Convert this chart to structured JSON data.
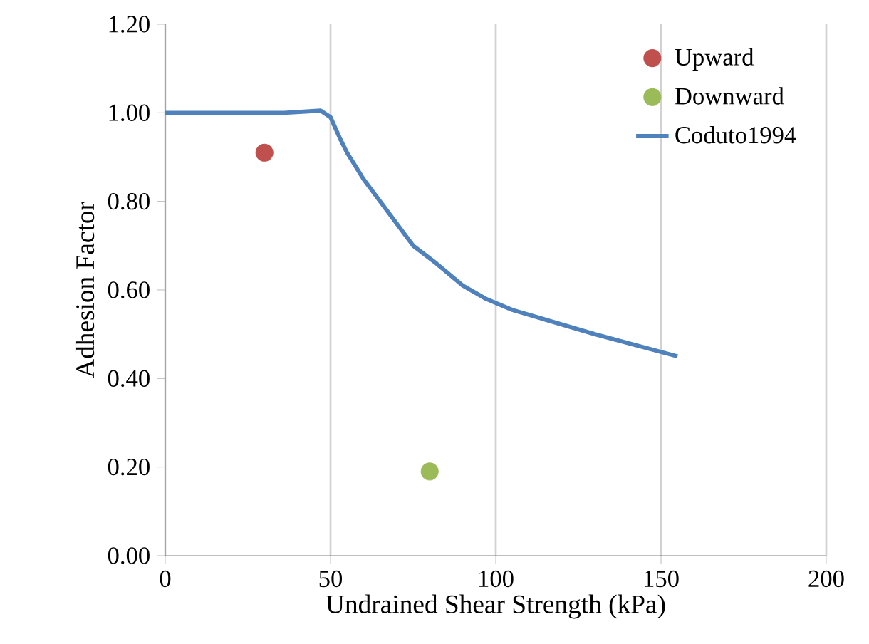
{
  "chart_data": {
    "type": "line",
    "xlabel": "Undrained Shear Strength (kPa)",
    "ylabel": "Adhesion Factor",
    "xlim": [
      0,
      200
    ],
    "xticks": [
      0,
      50,
      100,
      150,
      200
    ],
    "ylim": [
      0,
      1.2
    ],
    "yticks": [
      {
        "value": 0,
        "label": "0.00"
      },
      {
        "value": 0.2,
        "label": "0.20"
      },
      {
        "value": 0.4,
        "label": "0.40"
      },
      {
        "value": 0.6,
        "label": "0.60"
      },
      {
        "value": 0.8,
        "label": "0.80"
      },
      {
        "value": 1.0,
        "label": "1.00"
      },
      {
        "value": 1.2,
        "label": "1.20"
      }
    ],
    "grid": "x",
    "legend": "top right",
    "series": [
      {
        "name": "Upward",
        "type": "scatter",
        "marker": "circle",
        "color": "#c0504d",
        "x": [
          30
        ],
        "values": [
          0.91
        ]
      },
      {
        "name": "Downward",
        "type": "scatter",
        "marker": "circle",
        "color": "#9bbb59",
        "x": [
          80
        ],
        "values": [
          0.19
        ]
      },
      {
        "name": "Coduto1994",
        "marker": "none",
        "color": "#4f81bd",
        "x": [
          0,
          36,
          47,
          50,
          53,
          55,
          60,
          67,
          75,
          82,
          90,
          97,
          105,
          130,
          155
        ],
        "values": [
          1.0,
          1.0,
          1.005,
          0.99,
          0.94,
          0.91,
          0.85,
          0.78,
          0.7,
          0.66,
          0.61,
          0.58,
          0.555,
          0.5,
          0.45
        ]
      }
    ]
  }
}
